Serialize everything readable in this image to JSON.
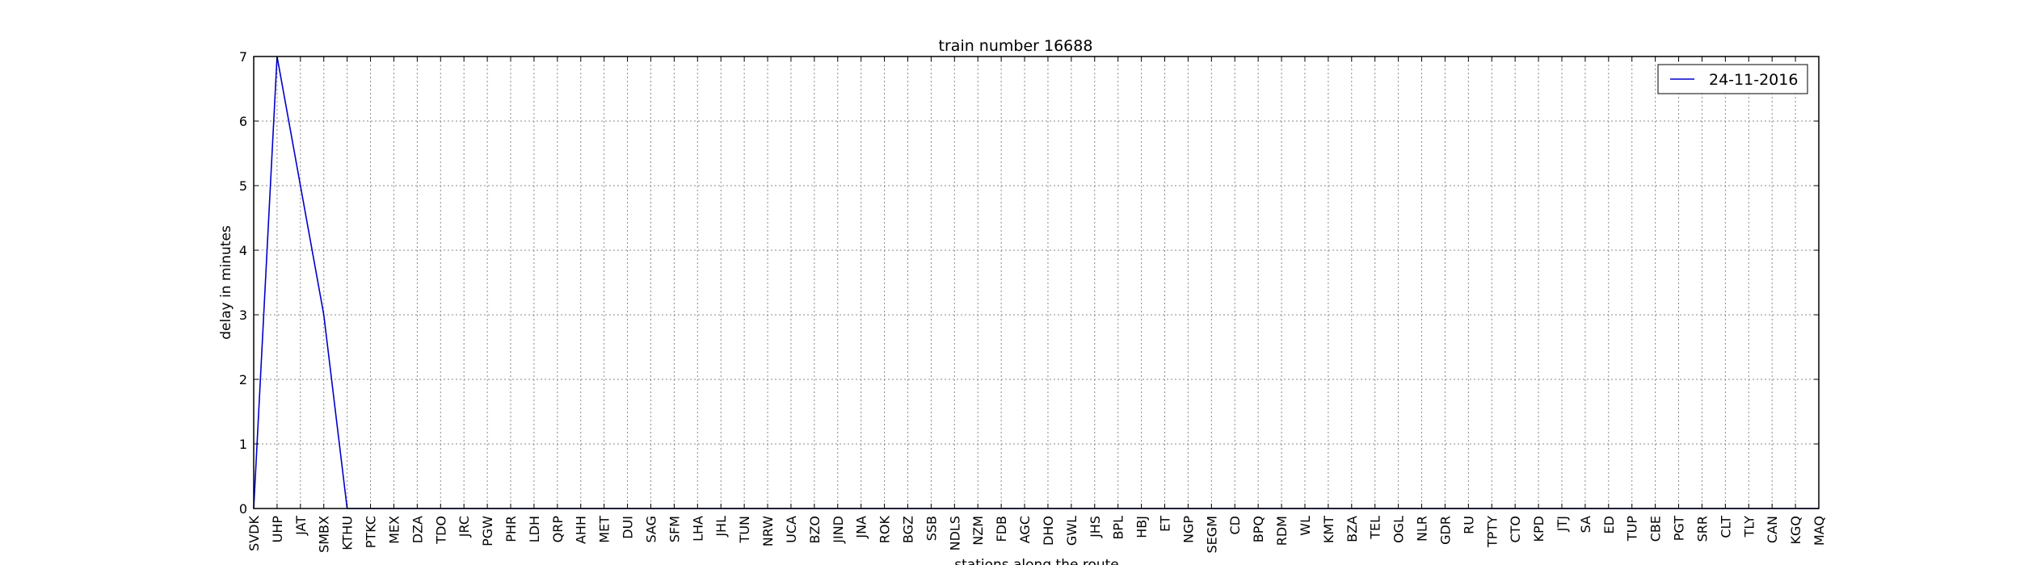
{
  "chart_data": {
    "type": "line",
    "title": "train number 16688",
    "xlabel": "stations along the route",
    "ylabel": "delay in minutes",
    "ylim": [
      0,
      7
    ],
    "yticks": [
      0,
      1,
      2,
      3,
      4,
      5,
      6,
      7
    ],
    "grid": true,
    "legend_position": "top-right",
    "line_color": "#0000cc",
    "categories": [
      "SVDK",
      "UHP",
      "JAT",
      "SMBX",
      "KTHU",
      "PTKC",
      "MEX",
      "DZA",
      "TDO",
      "JRC",
      "PGW",
      "PHR",
      "LDH",
      "QRP",
      "AHH",
      "MET",
      "DUI",
      "SAG",
      "SFM",
      "LHA",
      "JHL",
      "TUN",
      "NRW",
      "UCA",
      "BZO",
      "JIND",
      "JNA",
      "ROK",
      "BGZ",
      "SSB",
      "NDLS",
      "NZM",
      "FDB",
      "AGC",
      "DHO",
      "GWL",
      "JHS",
      "BPL",
      "HBJ",
      "ET",
      "NGP",
      "SEGM",
      "CD",
      "BPQ",
      "RDM",
      "WL",
      "KMT",
      "BZA",
      "TEL",
      "OGL",
      "NLR",
      "GDR",
      "RU",
      "TPTY",
      "CTO",
      "KPD",
      "JTJ",
      "SA",
      "ED",
      "TUP",
      "CBE",
      "PGT",
      "SRR",
      "CLT",
      "TLY",
      "CAN",
      "KGQ",
      "MAQ"
    ],
    "series": [
      {
        "name": "24-11-2016",
        "values": [
          0,
          7,
          5,
          3,
          0,
          0,
          0,
          0,
          0,
          0,
          0,
          0,
          0,
          0,
          0,
          0,
          0,
          0,
          0,
          0,
          0,
          0,
          0,
          0,
          0,
          0,
          0,
          0,
          0,
          0,
          0,
          0,
          0,
          0,
          0,
          0,
          0,
          0,
          0,
          0,
          0,
          0,
          0,
          0,
          0,
          0,
          0,
          0,
          0,
          0,
          0,
          0,
          0,
          0,
          0,
          0,
          0,
          0,
          0,
          0,
          0,
          0,
          0,
          0,
          0,
          0,
          0,
          0
        ]
      }
    ]
  }
}
